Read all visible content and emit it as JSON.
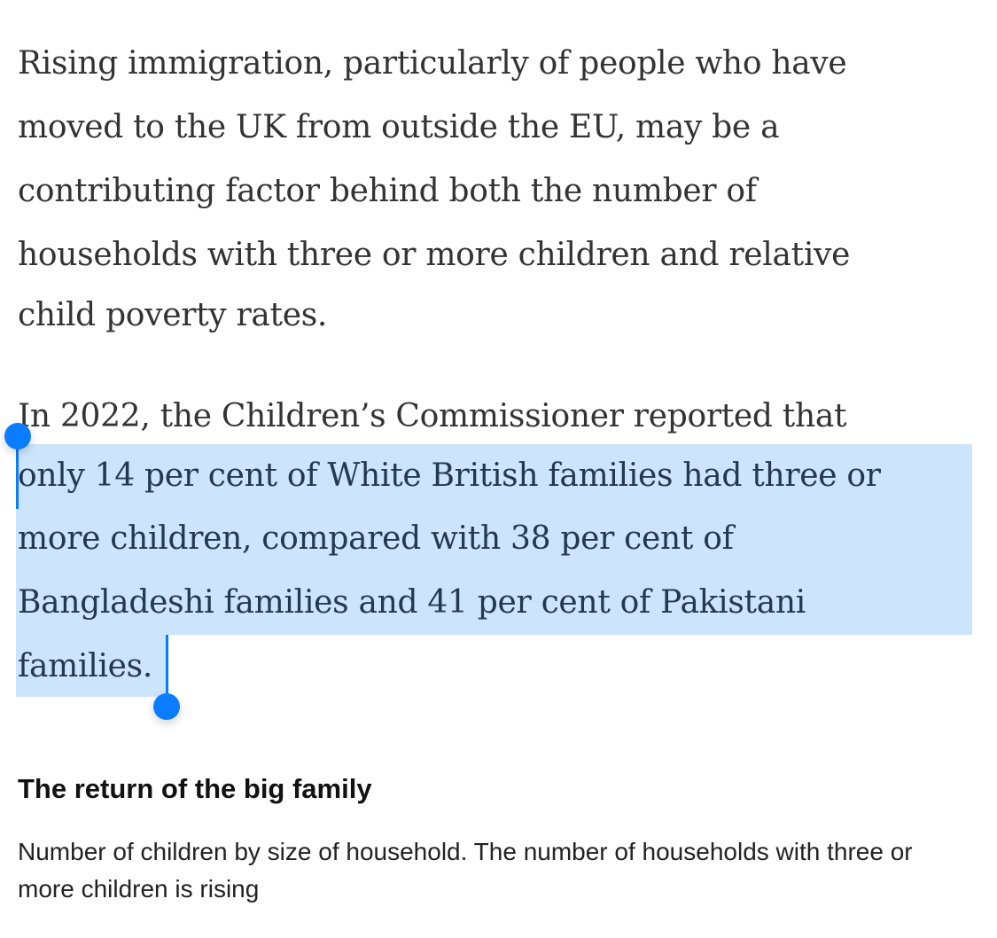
{
  "article": {
    "paragraph1": [
      "Rising immigration, particularly of people who have",
      "moved to the UK from outside the EU, may be a",
      "contributing factor behind both the number of",
      "households with three or more children and relative",
      "child poverty rates."
    ],
    "paragraph2": [
      "In 2022, the Children’s Commissioner reported that",
      "only 14 per cent of White British families had three or",
      "more children, compared with 38 per cent of",
      "Bangladeshi families and 41 per cent of Pakistani",
      "families."
    ]
  },
  "chart_header": {
    "title": "The return of the big family",
    "subtitle": "Number of children by size of household. The number of households with three or more children is rising"
  },
  "colors": {
    "selection": "#cce4fc",
    "handle": "#0a7cff",
    "text": "#333333"
  }
}
